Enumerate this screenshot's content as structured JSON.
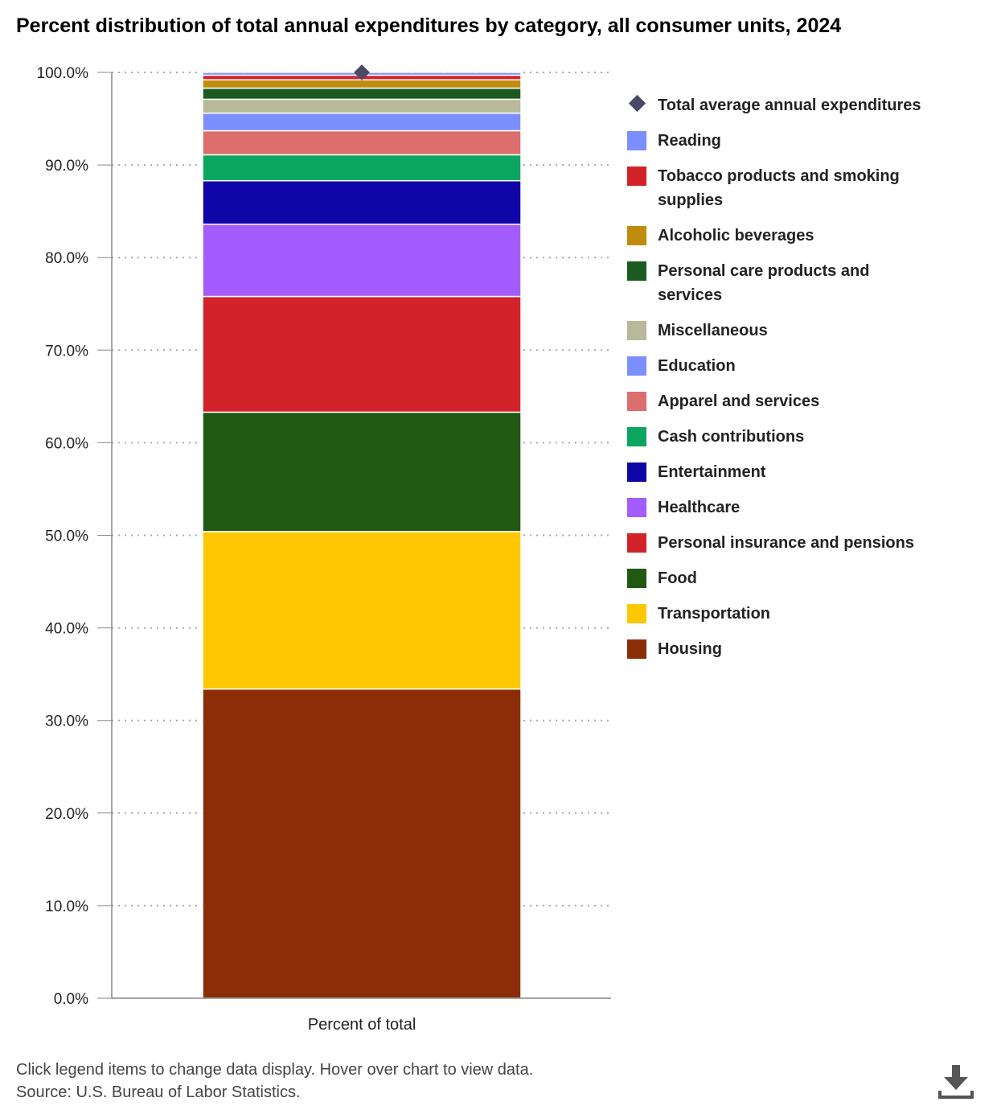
{
  "chart_data": {
    "type": "bar",
    "stacked": true,
    "title": "Percent distribution of total annual expenditures by category, all consumer units, 2024",
    "categories": [
      "Percent of total"
    ],
    "ylim": [
      0,
      100
    ],
    "yticks": [
      "0.0%",
      "10.0%",
      "20.0%",
      "30.0%",
      "40.0%",
      "50.0%",
      "60.0%",
      "70.0%",
      "80.0%",
      "90.0%",
      "100.0%"
    ],
    "grid": true,
    "legend_position": "right",
    "series": [
      {
        "name": "Housing",
        "values": [
          33.4
        ],
        "color": "#8b2e07"
      },
      {
        "name": "Transportation",
        "values": [
          17.0
        ],
        "color": "#fdc800"
      },
      {
        "name": "Food",
        "values": [
          12.9
        ],
        "color": "#215812"
      },
      {
        "name": "Personal insurance and pensions",
        "values": [
          12.5
        ],
        "color": "#d2232a"
      },
      {
        "name": "Healthcare",
        "values": [
          7.8
        ],
        "color": "#a35cff"
      },
      {
        "name": "Entertainment",
        "values": [
          4.7
        ],
        "color": "#1006a8"
      },
      {
        "name": "Cash contributions",
        "values": [
          2.8
        ],
        "color": "#0ba55f"
      },
      {
        "name": "Apparel and services",
        "values": [
          2.6
        ],
        "color": "#dc6e6e"
      },
      {
        "name": "Education",
        "values": [
          1.9
        ],
        "color": "#7b8fff"
      },
      {
        "name": "Miscellaneous",
        "values": [
          1.5
        ],
        "color": "#b8b99b"
      },
      {
        "name": "Personal care products and services",
        "values": [
          1.2
        ],
        "color": "#1b5b22"
      },
      {
        "name": "Alcoholic beverages",
        "values": [
          0.9
        ],
        "color": "#bf8c0e"
      },
      {
        "name": "Tobacco products and smoking supplies",
        "values": [
          0.5
        ],
        "color": "#d2232a"
      },
      {
        "name": "Reading",
        "values": [
          0.3
        ],
        "color": "#7b8fff"
      }
    ],
    "marker_series": {
      "name": "Total average annual expenditures",
      "values": [
        100
      ],
      "color": "#4a4a68"
    }
  },
  "footer": {
    "note": "Click legend items to change data display. Hover over chart to view data.",
    "source": "Source: U.S. Bureau of Labor Statistics."
  },
  "icons": {
    "download": "download-icon"
  }
}
